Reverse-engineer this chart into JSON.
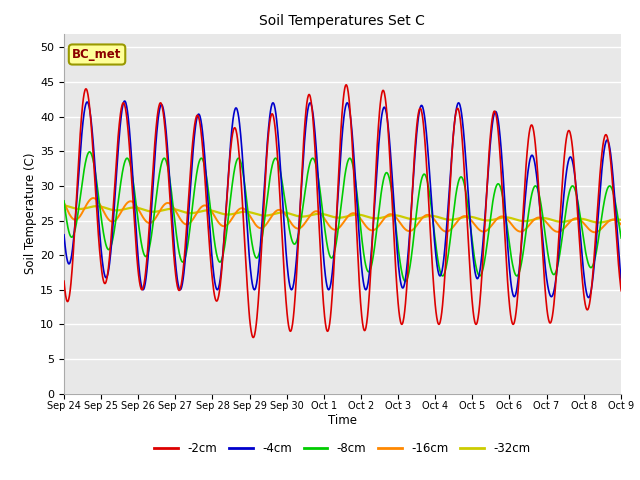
{
  "title": "Soil Temperatures Set C",
  "xlabel": "Time",
  "ylabel": "Soil Temperature (C)",
  "ylim": [
    0,
    52
  ],
  "yticks": [
    0,
    5,
    10,
    15,
    20,
    25,
    30,
    35,
    40,
    45,
    50
  ],
  "x_labels": [
    "Sep 24",
    "Sep 25",
    "Sep 26",
    "Sep 27",
    "Sep 28",
    "Sep 29",
    "Sep 30",
    "Oct 1",
    "Oct 2",
    "Oct 3",
    "Oct 4",
    "Oct 5",
    "Oct 6",
    "Oct 7",
    "Oct 8",
    "Oct 9"
  ],
  "colors": {
    "-2cm": "#dd0000",
    "-4cm": "#0000cc",
    "-8cm": "#00cc00",
    "-16cm": "#ff8800",
    "-32cm": "#cccc00"
  },
  "fig_bg_color": "#ffffff",
  "plot_bg_color": "#e8e8e8",
  "label_box_color": "#ffff99",
  "label_box_edge": "#999900",
  "label_text": "BC_met",
  "num_days": 16,
  "peaks_2cm": [
    47,
    42,
    42,
    42,
    39,
    38,
    42,
    44,
    45,
    43,
    40,
    42,
    40,
    38,
    38,
    37
  ],
  "troughs_2cm": [
    13,
    16,
    15,
    15,
    14,
    8,
    9,
    9,
    9,
    10,
    10,
    10,
    10,
    10,
    12,
    13
  ],
  "peaks_4cm": [
    44,
    41,
    43,
    41,
    40,
    42,
    42,
    42,
    42,
    41,
    42,
    42,
    40,
    31,
    36,
    37
  ],
  "troughs_4cm": [
    19,
    17,
    15,
    15,
    15,
    15,
    15,
    15,
    15,
    15,
    17,
    17,
    14,
    14,
    14,
    13
  ],
  "peaks_8cm": [
    37,
    34,
    34,
    34,
    34,
    34,
    34,
    34,
    34,
    31,
    32,
    31,
    30,
    30,
    30,
    30
  ],
  "troughs_8cm": [
    23,
    21,
    20,
    19,
    19,
    19,
    22,
    20,
    18,
    16,
    17,
    17,
    17,
    17,
    18,
    19
  ],
  "mean_16cm": [
    27.0,
    26.5,
    26.2,
    26.0,
    25.7,
    25.3,
    25.2,
    25.0,
    24.8,
    24.7,
    24.6,
    24.5,
    24.5,
    24.4,
    24.3,
    24.2
  ],
  "amp_16cm": [
    1.8,
    1.6,
    1.5,
    1.5,
    1.4,
    1.4,
    1.3,
    1.3,
    1.2,
    1.2,
    1.2,
    1.1,
    1.1,
    1.0,
    1.0,
    0.9
  ],
  "mean_32cm": [
    27.0,
    26.8,
    26.6,
    26.4,
    26.2,
    26.0,
    25.9,
    25.7,
    25.6,
    25.5,
    25.4,
    25.3,
    25.2,
    25.1,
    25.0,
    24.9
  ],
  "amp_32cm": [
    0.25,
    0.25,
    0.25,
    0.25,
    0.25,
    0.25,
    0.25,
    0.25,
    0.25,
    0.25,
    0.25,
    0.25,
    0.25,
    0.25,
    0.25,
    0.25
  ],
  "peak_phase_2cm": 0.6,
  "peak_phase_4cm": 0.63,
  "peak_phase_8cm": 0.7,
  "peak_phase_16cm": 0.8,
  "peak_phase_32cm": 0.9,
  "pts_per_day": 96
}
